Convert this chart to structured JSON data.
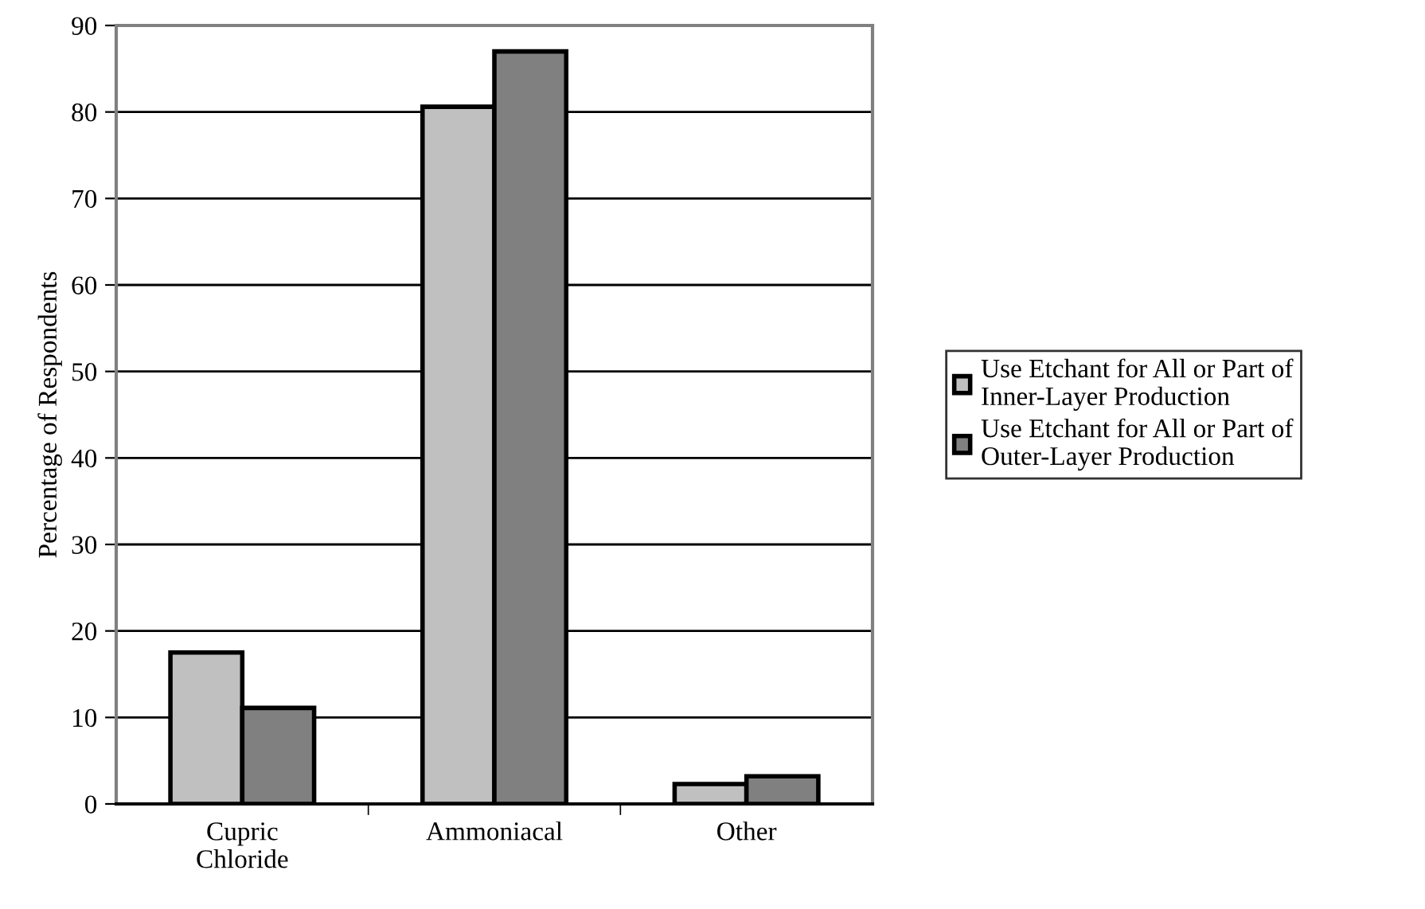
{
  "chart_data": {
    "type": "bar",
    "ylabel": "Percentage of Respondents",
    "categories": [
      "Cupric\nChloride",
      "Ammoniacal",
      "Other"
    ],
    "series": [
      {
        "name": "Use Etchant for All or Part of\nInner-Layer Production",
        "color": "#c0c0c0",
        "values": [
          17.5,
          80.6,
          2.3
        ]
      },
      {
        "name": "Use Etchant for All or Part of\nOuter-Layer Production",
        "color": "#808080",
        "values": [
          11.1,
          87,
          3.2
        ]
      }
    ],
    "ylim": [
      0,
      90
    ],
    "yticks": [
      0,
      10,
      20,
      30,
      40,
      50,
      60,
      70,
      80,
      90
    ],
    "grid": "y",
    "legend": "right"
  }
}
